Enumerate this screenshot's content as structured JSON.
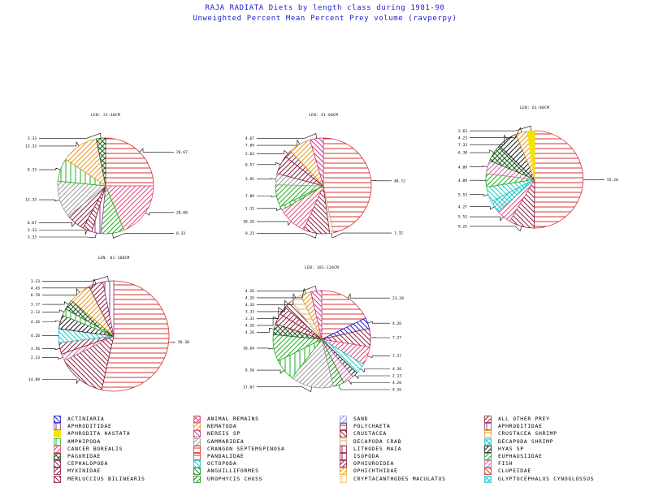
{
  "titles": {
    "line1": "RAJA RADIATA Diets by length class during 1981-90",
    "line2": "Unweighted Percent Mean Percent Prey  volume (ravperpy)"
  },
  "colors": {
    "title": "#1a1ad0",
    "label_line": "#000000",
    "frame": "#000000"
  },
  "categories": [
    {
      "name": "ACTINIARIA",
      "color": "#1a1ad0",
      "pattern": "diag-down"
    },
    {
      "name": "APHRODITIDAE",
      "color": "#8e3c8e",
      "pattern": "vertical"
    },
    {
      "name": "APHRODITA HASTATA",
      "color": "#f4e400",
      "pattern": "solid"
    },
    {
      "name": "AMPHIPODA",
      "color": "#1eb01e",
      "pattern": "vertical"
    },
    {
      "name": "CANCER BOREALIS",
      "color": "#e0467c",
      "pattern": "diag-up"
    },
    {
      "name": "PAGURIDAE",
      "color": "#1f5a1f",
      "pattern": "crosshatch-x"
    },
    {
      "name": "CEPHALOPODA",
      "color": "#8a1d3b",
      "pattern": "diag-down"
    },
    {
      "name": "MYXINIDAE",
      "color": "#8a1d3b",
      "pattern": "diag-up"
    },
    {
      "name": "MERLUCCIUS BILINEARIS",
      "color": "#8a1d3b",
      "pattern": "diag-down"
    },
    {
      "name": "ANIMAL REMAINS",
      "color": "#e0467c",
      "pattern": "crosshatch-x"
    },
    {
      "name": "NEMATODA",
      "color": "#e8961e",
      "pattern": "diag-up"
    },
    {
      "name": "NEREIS SP",
      "color": "#c8368e",
      "pattern": "diag-down"
    },
    {
      "name": "GAMMARIDEA",
      "color": "#9a9a9a",
      "pattern": "diag-up"
    },
    {
      "name": "CRANGON SEPTEMSPINOSA",
      "color": "#d83030",
      "pattern": "horizontal"
    },
    {
      "name": "PANDALIDAE",
      "color": "#d83030",
      "pattern": "horizontal"
    },
    {
      "name": "OCTOPODA",
      "color": "#20c8c8",
      "pattern": "diag-down"
    },
    {
      "name": "ANGUILLIFORMES",
      "color": "#1a8a1a",
      "pattern": "diag-down"
    },
    {
      "name": "UROPHYCIS CHUSS",
      "color": "#1a8a1a",
      "pattern": "diag-up"
    },
    {
      "name": "SAND",
      "color": "#9a9ad8",
      "pattern": "diag-up"
    },
    {
      "name": "POLYCHAETA",
      "color": "#8a1d3b",
      "pattern": "horizontal"
    },
    {
      "name": "CRUSTACEA",
      "color": "#8a1d3b",
      "pattern": "diag-down"
    },
    {
      "name": "DECAPODA CRAB",
      "color": "#c8b478",
      "pattern": "horizontal"
    },
    {
      "name": "LITHODES MAIA",
      "color": "#8a1d3b",
      "pattern": "vertical"
    },
    {
      "name": "ISOPODA",
      "color": "#8a1d3b",
      "pattern": "vertical"
    },
    {
      "name": "OPHIUROIDEA",
      "color": "#8a1d3b",
      "pattern": "diag-up"
    },
    {
      "name": "OPHICHTHIDAE",
      "color": "#e8961e",
      "pattern": "diag-up"
    },
    {
      "name": "CRYPTACANTHODES MACULATUS",
      "color": "#e8c878",
      "pattern": "vertical"
    },
    {
      "name": "ALL OTHER PREY",
      "color": "#8a1d3b",
      "pattern": "diag-up"
    },
    {
      "name": "APHRODITIDAE",
      "color": "#8e3c8e",
      "pattern": "vertical"
    },
    {
      "name": "CRUSTACEA SHRIMP",
      "color": "#e8961e",
      "pattern": "horizontal"
    },
    {
      "name": "DECAPODA SHRIMP",
      "color": "#20c8c8",
      "pattern": "crosshatch-x"
    },
    {
      "name": "HYAS SP",
      "color": "#1a1a1a",
      "pattern": "diag-up"
    },
    {
      "name": "EUPHAUSIIDAE",
      "color": "#1eb01e",
      "pattern": "diag-up"
    },
    {
      "name": "FISH",
      "color": "#c86aa8",
      "pattern": "diag-up"
    },
    {
      "name": "CLUPEIDAE",
      "color": "#d83030",
      "pattern": "diag-down"
    },
    {
      "name": "GLYPTOCEPHALUS CYNOGLOSSUS",
      "color": "#20c8c8",
      "pattern": "crosshatch-x"
    }
  ],
  "chart_data": [
    {
      "type": "pie",
      "title": "LEN: 21-40CM",
      "slices": [
        {
          "category": "PANDALIDAE",
          "label": "26.67",
          "value": 26.67
        },
        {
          "category": "CANCER BOREALIS",
          "label": "20.00",
          "value": 20.0
        },
        {
          "category": "EUPHAUSIIDAE",
          "label": "8.33",
          "value": 8.33
        },
        {
          "category": "APHRODITIDAE",
          "label": "3.33",
          "value": 3.33
        },
        {
          "category": "CEPHALOPODA",
          "label": "3.33",
          "value": 3.33
        },
        {
          "category": "ALL OTHER PREY",
          "label": "6.67",
          "value": 6.67
        },
        {
          "category": "GAMMARIDEA",
          "label": "13.33",
          "value": 13.33
        },
        {
          "category": "AMPHIPODA",
          "label": "8.33",
          "value": 8.33
        },
        {
          "category": "NEMATODA",
          "label": "13.33",
          "value": 13.33
        },
        {
          "category": "PAGURIDAE",
          "label": "3.33",
          "value": 3.33
        }
      ]
    },
    {
      "type": "pie",
      "title": "LEN: 41-60CM",
      "slices": [
        {
          "category": "PANDALIDAE",
          "label": "48.72",
          "value": 48.72
        },
        {
          "category": "DECAPODA CRAB",
          "label": "1.32",
          "value": 1.32
        },
        {
          "category": "CRUSTACEA",
          "label": "9.21",
          "value": 9.21
        },
        {
          "category": "CANCER BOREALIS",
          "label": "10.26",
          "value": 10.26
        },
        {
          "category": "AMPHIPODA",
          "label": "1.32",
          "value": 1.32
        },
        {
          "category": "EUPHAUSIIDAE",
          "label": "7.89",
          "value": 7.89
        },
        {
          "category": "GAMMARIDEA",
          "label": "3.95",
          "value": 3.95
        },
        {
          "category": "ALL OTHER PREY",
          "label": "6.57",
          "value": 6.57
        },
        {
          "category": "MYXINIDAE",
          "label": "2.63",
          "value": 2.63
        },
        {
          "category": "NEMATODA",
          "label": "7.89",
          "value": 7.89
        },
        {
          "category": "NEREIS SP",
          "label": "4.67",
          "value": 4.67
        }
      ]
    },
    {
      "type": "pie",
      "title": "LEN: 61-80CM",
      "slices": [
        {
          "category": "PANDALIDAE",
          "label": "55.26",
          "value": 55.26
        },
        {
          "category": "CRUSTACEA",
          "label": "9.25",
          "value": 9.25
        },
        {
          "category": "CANCER BOREALIS",
          "label": "5.53",
          "value": 5.53
        },
        {
          "category": "DECAPODA SHRIMP",
          "label": "4.27",
          "value": 4.27
        },
        {
          "category": "OCTOPODA",
          "label": "5.53",
          "value": 5.53
        },
        {
          "category": "EUPHAUSIIDAE",
          "label": "4.89",
          "value": 4.89
        },
        {
          "category": "FISH",
          "label": "4.89",
          "value": 4.89
        },
        {
          "category": "PAGURIDAE",
          "label": "6.38",
          "value": 6.38
        },
        {
          "category": "HYAS SP",
          "label": "7.33",
          "value": 7.33
        },
        {
          "category": "NEMATODA",
          "label": "4.23",
          "value": 4.23
        },
        {
          "category": "APHRODITA HASTATA",
          "label": "2.63",
          "value": 2.63
        }
      ]
    },
    {
      "type": "pie",
      "title": "LEN: 81-100CM",
      "slices": [
        {
          "category": "PANDALIDAE",
          "label": "56.38",
          "value": 56.38
        },
        {
          "category": "CRUSTACEA",
          "label": "14.89",
          "value": 14.89
        },
        {
          "category": "FISH",
          "label": "2.13",
          "value": 2.13
        },
        {
          "category": "ALL OTHER PREY",
          "label": "3.56",
          "value": 3.56
        },
        {
          "category": "OCTOPODA",
          "label": "4.26",
          "value": 4.26
        },
        {
          "category": "HYAS SP",
          "label": "4.26",
          "value": 4.26
        },
        {
          "category": "AMPHIPODA",
          "label": "2.13",
          "value": 2.13
        },
        {
          "category": "PAGURIDAE",
          "label": "3.17",
          "value": 3.17
        },
        {
          "category": "NEMATODA",
          "label": "6.78",
          "value": 6.78
        },
        {
          "category": "MYXINIDAE",
          "label": "4.43",
          "value": 4.43
        },
        {
          "category": "APHRODITIDAE",
          "label": "3.33",
          "value": 3.33
        }
      ]
    },
    {
      "type": "pie",
      "title": "LEN: 101-120CM",
      "slices": [
        {
          "category": "PANDALIDAE",
          "label": "21.28",
          "value": 21.28
        },
        {
          "category": "ACTINIARIA",
          "label": "4.26",
          "value": 4.26
        },
        {
          "category": "CRUSTACEA",
          "label": "7.27",
          "value": 7.27
        },
        {
          "category": "CANCER BOREALIS",
          "label": "7.27",
          "value": 7.27
        },
        {
          "category": "OCTOPODA",
          "label": "4.26",
          "value": 4.26
        },
        {
          "category": "HYAS SP",
          "label": "2.13",
          "value": 2.13
        },
        {
          "category": "FISH",
          "label": "4.26",
          "value": 4.26
        },
        {
          "category": "UROPHYCIS CHUSS",
          "label": "4.26",
          "value": 4.26
        },
        {
          "category": "GAMMARIDEA",
          "label": "17.07",
          "value": 17.07
        },
        {
          "category": "AMPHIPODA",
          "label": "8.56",
          "value": 8.56
        },
        {
          "category": "EUPHAUSIIDAE",
          "label": "10.64",
          "value": 10.64
        },
        {
          "category": "PAGURIDAE",
          "label": "4.26",
          "value": 4.26
        },
        {
          "category": "ALL OTHER PREY",
          "label": "4.26",
          "value": 4.26
        },
        {
          "category": "MYXINIDAE",
          "label": "3.33",
          "value": 3.33
        },
        {
          "category": "CEPHALOPODA",
          "label": "3.33",
          "value": 3.33
        },
        {
          "category": "DECAPODA CRAB",
          "label": "4.26",
          "value": 4.26
        },
        {
          "category": "NEMATODA",
          "label": "4.26",
          "value": 4.26
        },
        {
          "category": "NEREIS SP",
          "label": "4.26",
          "value": 4.26
        }
      ]
    }
  ]
}
